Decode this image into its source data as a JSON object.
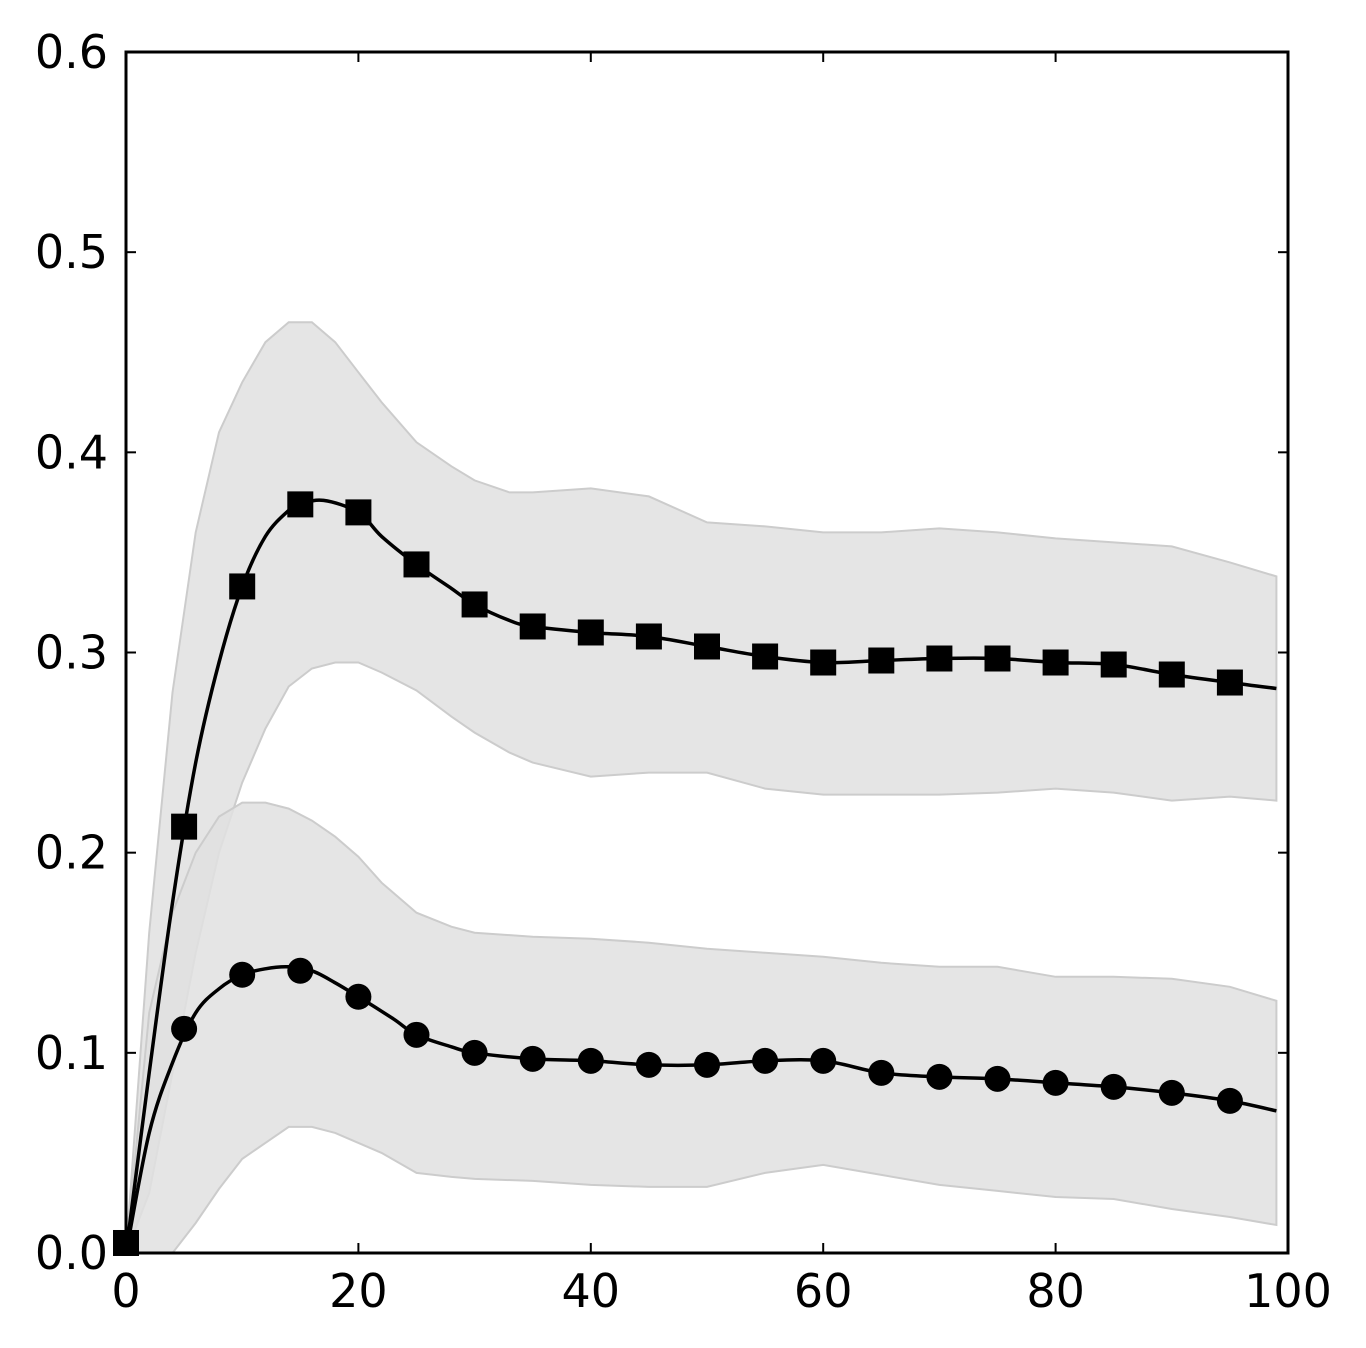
{
  "chart_data": {
    "type": "line",
    "title": "",
    "xlabel": "",
    "ylabel": "",
    "xlim": [
      0,
      100
    ],
    "ylim": [
      0,
      0.6
    ],
    "xticks": [
      0,
      20,
      40,
      60,
      80,
      100
    ],
    "xtick_labels": [
      "0",
      "20",
      "40",
      "60",
      "80",
      "100"
    ],
    "yticks": [
      0.0,
      0.1,
      0.2,
      0.3,
      0.4,
      0.5,
      0.6
    ],
    "ytick_labels": [
      "0.0",
      "0.1",
      "0.2",
      "0.3",
      "0.4",
      "0.5",
      "0.6"
    ],
    "grid": false,
    "legend": "none",
    "colors": {
      "line": "#000000",
      "band": "#e0e0e0",
      "band_edge": "#cccccc"
    },
    "series": [
      {
        "marker": "square",
        "x": [
          0,
          5,
          10,
          15,
          20,
          25,
          30,
          35,
          40,
          45,
          50,
          55,
          60,
          65,
          70,
          75,
          80,
          85,
          90,
          95
        ],
        "y": [
          0.005,
          0.213,
          0.333,
          0.374,
          0.37,
          0.344,
          0.324,
          0.313,
          0.31,
          0.308,
          0.303,
          0.298,
          0.295,
          0.296,
          0.297,
          0.297,
          0.295,
          0.294,
          0.289,
          0.285
        ],
        "line_x": [
          0,
          2,
          4,
          6,
          8,
          10,
          12,
          14,
          15,
          17,
          20,
          22,
          25,
          28,
          30,
          33,
          35,
          40,
          45,
          50,
          55,
          60,
          65,
          70,
          75,
          80,
          85,
          90,
          95,
          99
        ],
        "line_y": [
          0.0,
          0.09,
          0.175,
          0.245,
          0.295,
          0.333,
          0.358,
          0.371,
          0.374,
          0.376,
          0.37,
          0.358,
          0.344,
          0.332,
          0.324,
          0.316,
          0.313,
          0.31,
          0.308,
          0.303,
          0.298,
          0.295,
          0.296,
          0.297,
          0.297,
          0.295,
          0.294,
          0.289,
          0.285,
          0.282
        ],
        "band_x": [
          0,
          2,
          4,
          6,
          8,
          10,
          12,
          14,
          16,
          18,
          20,
          22,
          25,
          28,
          30,
          33,
          35,
          40,
          45,
          50,
          55,
          60,
          65,
          70,
          75,
          80,
          85,
          90,
          95,
          99
        ],
        "band_upper": [
          0.0,
          0.16,
          0.28,
          0.36,
          0.41,
          0.435,
          0.455,
          0.465,
          0.465,
          0.455,
          0.44,
          0.425,
          0.405,
          0.393,
          0.386,
          0.38,
          0.38,
          0.382,
          0.378,
          0.365,
          0.363,
          0.36,
          0.36,
          0.362,
          0.36,
          0.357,
          0.355,
          0.353,
          0.345,
          0.338
        ],
        "band_lower": [
          0.0,
          0.03,
          0.09,
          0.15,
          0.2,
          0.235,
          0.262,
          0.283,
          0.292,
          0.295,
          0.295,
          0.29,
          0.281,
          0.268,
          0.26,
          0.25,
          0.245,
          0.238,
          0.24,
          0.24,
          0.232,
          0.229,
          0.229,
          0.229,
          0.23,
          0.232,
          0.23,
          0.226,
          0.228,
          0.226
        ]
      },
      {
        "marker": "circle",
        "x": [
          0,
          5,
          10,
          15,
          20,
          25,
          30,
          35,
          40,
          45,
          50,
          55,
          60,
          65,
          70,
          75,
          80,
          85,
          90,
          95
        ],
        "y": [
          0.005,
          0.112,
          0.139,
          0.141,
          0.128,
          0.109,
          0.1,
          0.097,
          0.096,
          0.094,
          0.094,
          0.096,
          0.096,
          0.09,
          0.088,
          0.087,
          0.085,
          0.083,
          0.08,
          0.076
        ],
        "line_x": [
          0,
          2,
          4,
          6,
          8,
          10,
          12,
          14,
          16,
          18,
          20,
          23,
          25,
          28,
          30,
          35,
          40,
          45,
          50,
          55,
          60,
          65,
          70,
          75,
          80,
          85,
          90,
          95,
          99
        ],
        "line_y": [
          0.0,
          0.06,
          0.095,
          0.12,
          0.132,
          0.139,
          0.142,
          0.143,
          0.141,
          0.135,
          0.128,
          0.117,
          0.109,
          0.103,
          0.1,
          0.097,
          0.096,
          0.094,
          0.094,
          0.096,
          0.096,
          0.09,
          0.088,
          0.087,
          0.085,
          0.083,
          0.08,
          0.076,
          0.071
        ],
        "band_x": [
          0,
          2,
          4,
          6,
          8,
          10,
          12,
          14,
          16,
          18,
          20,
          22,
          25,
          28,
          30,
          35,
          40,
          45,
          50,
          55,
          60,
          65,
          70,
          75,
          80,
          85,
          90,
          95,
          99
        ],
        "band_upper": [
          0.0,
          0.12,
          0.17,
          0.2,
          0.218,
          0.225,
          0.225,
          0.222,
          0.216,
          0.208,
          0.198,
          0.185,
          0.17,
          0.163,
          0.16,
          0.158,
          0.157,
          0.155,
          0.152,
          0.15,
          0.148,
          0.145,
          0.143,
          0.143,
          0.138,
          0.138,
          0.137,
          0.133,
          0.126
        ],
        "band_lower": [
          0.0,
          0.0,
          0.0,
          0.015,
          0.032,
          0.047,
          0.055,
          0.063,
          0.063,
          0.06,
          0.055,
          0.05,
          0.04,
          0.038,
          0.037,
          0.036,
          0.034,
          0.033,
          0.033,
          0.04,
          0.044,
          0.039,
          0.034,
          0.031,
          0.028,
          0.027,
          0.022,
          0.018,
          0.014
        ]
      }
    ]
  }
}
